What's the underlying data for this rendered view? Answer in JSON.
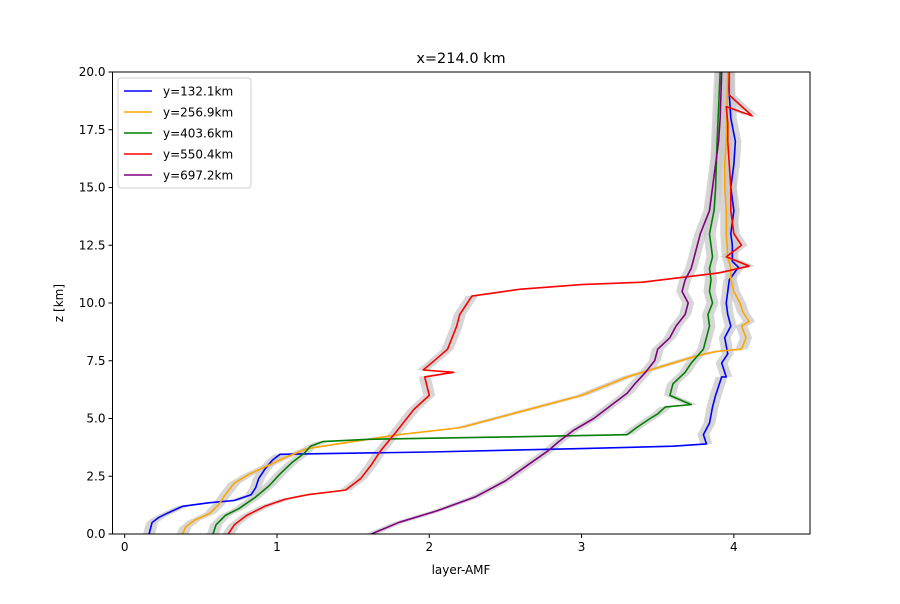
{
  "chart_data": {
    "type": "line",
    "title": "x=214.0 km",
    "xlabel": "layer-AMF",
    "ylabel": "z [km]",
    "xlim": [
      -0.08,
      4.5
    ],
    "ylim": [
      0,
      20
    ],
    "xticks": [
      "0",
      "1",
      "2",
      "3",
      "4"
    ],
    "yticks": [
      "0.0",
      "2.5",
      "5.0",
      "7.5",
      "10.0",
      "12.5",
      "15.0",
      "17.5",
      "20.0"
    ],
    "grid": false,
    "legend_position": "upper-left",
    "uncertainty_band_color": "#c8c8c8",
    "series": [
      {
        "name": "y=132.1km",
        "color": "#0000ff",
        "x": [
          0.16,
          0.18,
          0.22,
          0.28,
          0.38,
          0.55,
          0.72,
          0.83,
          0.86,
          0.88,
          0.92,
          0.97,
          1.02,
          2.0,
          3.0,
          3.6,
          3.82,
          3.8,
          3.84,
          3.86,
          3.88,
          3.9,
          3.92,
          3.95,
          3.92,
          3.96,
          3.94,
          3.98,
          3.96,
          3.95,
          3.97,
          4.03,
          3.99,
          3.99,
          3.98,
          4.0,
          3.98,
          4.0,
          4.01,
          3.98,
          3.97,
          3.96
        ],
        "y": [
          0.0,
          0.5,
          0.7,
          0.9,
          1.2,
          1.35,
          1.45,
          1.7,
          2.0,
          2.4,
          2.8,
          3.2,
          3.45,
          3.55,
          3.7,
          3.8,
          3.9,
          4.3,
          4.8,
          5.5,
          6.0,
          6.4,
          6.8,
          6.8,
          7.4,
          7.8,
          8.5,
          9.0,
          9.5,
          10.0,
          11.0,
          11.55,
          11.8,
          12.5,
          13.0,
          14.0,
          15.0,
          16.0,
          17.0,
          18.0,
          19.0,
          20.0
        ]
      },
      {
        "name": "y=256.9km",
        "color": "#ffa500",
        "x": [
          0.38,
          0.4,
          0.46,
          0.56,
          0.62,
          0.66,
          0.72,
          0.82,
          0.92,
          1.05,
          1.2,
          1.5,
          1.8,
          2.2,
          2.6,
          3.0,
          3.3,
          3.6,
          3.75,
          3.88,
          4.05,
          4.08,
          4.05,
          4.1,
          4.06,
          4.04,
          4.0,
          3.98,
          3.98,
          3.96,
          3.95,
          3.95,
          3.94,
          3.94,
          3.95,
          3.96
        ],
        "y": [
          0.0,
          0.3,
          0.6,
          0.9,
          1.3,
          1.7,
          2.2,
          2.6,
          2.9,
          3.3,
          3.7,
          4.0,
          4.3,
          4.6,
          5.3,
          6.0,
          6.8,
          7.4,
          7.7,
          7.9,
          8.0,
          8.5,
          9.0,
          9.2,
          9.6,
          10.0,
          10.5,
          11.0,
          11.5,
          12.0,
          13.0,
          14.0,
          15.0,
          16.0,
          17.0,
          20.0
        ]
      },
      {
        "name": "y=403.6km",
        "color": "#008000",
        "x": [
          0.58,
          0.6,
          0.66,
          0.75,
          0.86,
          0.95,
          1.02,
          1.1,
          1.18,
          1.22,
          1.3,
          1.6,
          2.5,
          3.3,
          3.36,
          3.45,
          3.5,
          3.55,
          3.72,
          3.58,
          3.6,
          3.68,
          3.72,
          3.8,
          3.82,
          3.84,
          3.83,
          3.86,
          3.84,
          3.85,
          3.84,
          3.86,
          3.84,
          3.87,
          3.88,
          3.89,
          3.91
        ],
        "y": [
          0.0,
          0.4,
          0.8,
          1.1,
          1.6,
          2.1,
          2.6,
          3.1,
          3.5,
          3.8,
          4.0,
          4.1,
          4.2,
          4.3,
          4.6,
          5.0,
          5.2,
          5.5,
          5.6,
          6.0,
          6.5,
          7.0,
          7.4,
          8.0,
          8.5,
          9.0,
          9.5,
          10.0,
          10.5,
          11.0,
          11.5,
          12.0,
          13.0,
          14.0,
          15.0,
          17.0,
          20.0
        ]
      },
      {
        "name": "y=550.4km",
        "color": "#ff0000",
        "x": [
          0.68,
          0.72,
          0.8,
          0.92,
          1.05,
          1.2,
          1.45,
          1.55,
          1.62,
          1.68,
          1.78,
          1.9,
          2.0,
          1.97,
          2.16,
          1.96,
          2.05,
          2.12,
          2.15,
          2.18,
          2.2,
          2.25,
          2.28,
          2.6,
          3.0,
          3.4,
          3.9,
          4.1,
          3.95,
          4.05,
          4.0,
          3.98,
          3.98,
          3.97,
          3.96,
          3.96,
          3.95,
          4.12,
          3.97,
          3.97
        ],
        "y": [
          0.0,
          0.4,
          0.8,
          1.2,
          1.5,
          1.7,
          1.9,
          2.4,
          3.0,
          3.6,
          4.4,
          5.4,
          6.0,
          6.8,
          7.0,
          7.1,
          7.6,
          8.0,
          8.5,
          9.0,
          9.5,
          10.0,
          10.3,
          10.6,
          10.8,
          10.9,
          11.3,
          11.6,
          12.0,
          12.5,
          13.0,
          14.0,
          15.0,
          16.0,
          17.0,
          17.8,
          18.5,
          18.1,
          19.0,
          20.0
        ]
      },
      {
        "name": "y=697.2km",
        "color": "#800080",
        "x": [
          1.62,
          1.8,
          2.05,
          2.3,
          2.5,
          2.65,
          2.78,
          2.85,
          2.95,
          3.08,
          3.2,
          3.3,
          3.35,
          3.42,
          3.48,
          3.5,
          3.58,
          3.62,
          3.68,
          3.7,
          3.66,
          3.68,
          3.72,
          3.74,
          3.78,
          3.84,
          3.86,
          3.88,
          3.9,
          3.91,
          3.92
        ],
        "y": [
          0.0,
          0.5,
          1.0,
          1.6,
          2.3,
          3.0,
          3.6,
          4.0,
          4.5,
          5.0,
          5.6,
          6.1,
          6.5,
          7.0,
          7.5,
          8.0,
          8.5,
          9.0,
          9.5,
          10.0,
          10.5,
          11.0,
          11.5,
          12.0,
          13.0,
          14.0,
          15.0,
          16.0,
          17.0,
          18.0,
          20.0
        ]
      }
    ]
  }
}
